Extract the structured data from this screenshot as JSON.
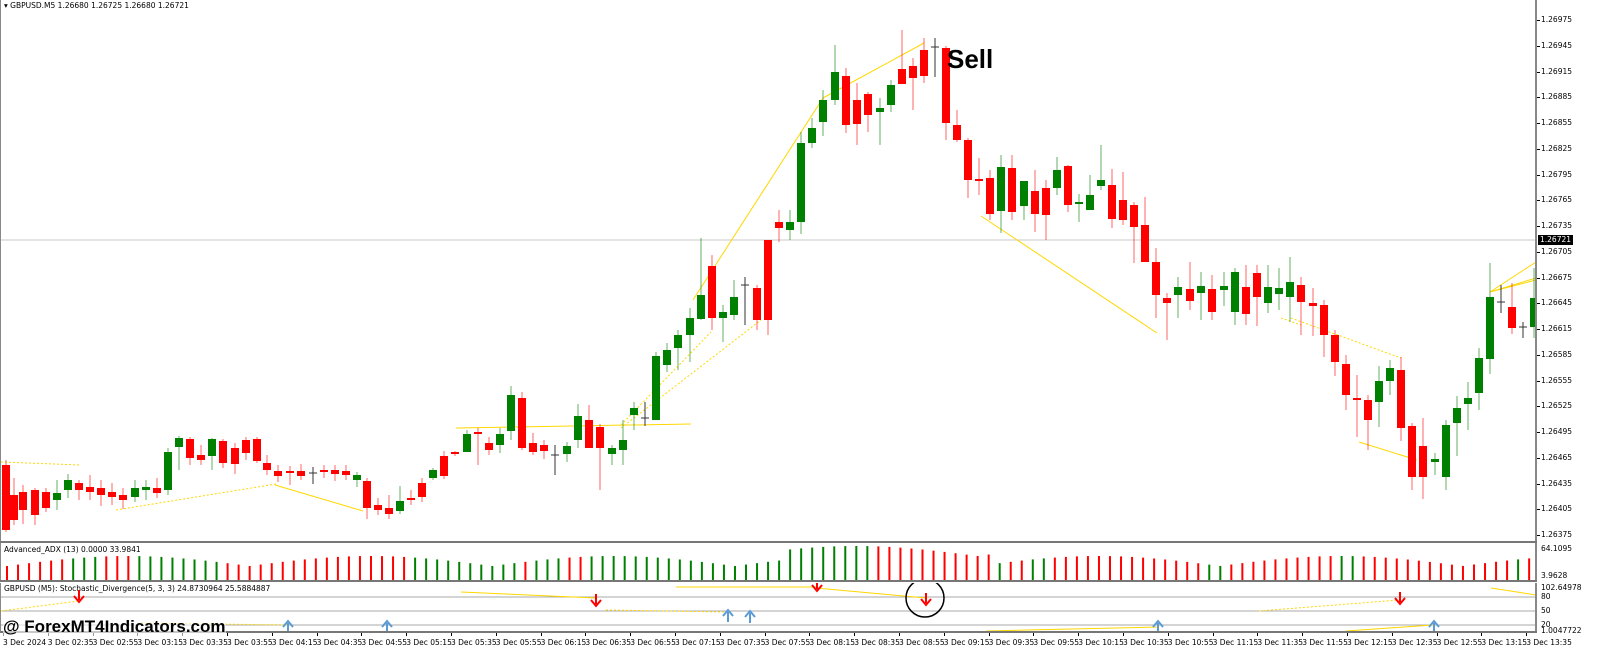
{
  "main_chart": {
    "title": "GBPUSD.M5  1.26680 1.26725 1.26680 1.26721",
    "symbol": "GBPUSD.M5",
    "ohlc": {
      "open": "1.26680",
      "high": "1.26725",
      "low": "1.26680",
      "close": "1.26721"
    },
    "current_price": "1.26721",
    "annotation": "Sell",
    "bull_color": "#008000",
    "bear_color": "#ff0000",
    "line_color": "#ffd700",
    "price_axis": [
      "1.26975",
      "1.26945",
      "1.26915",
      "1.26885",
      "1.26855",
      "1.26825",
      "1.26795",
      "1.26765",
      "1.26735",
      "1.26705",
      "1.26675",
      "1.26645",
      "1.26615",
      "1.26585",
      "1.26555",
      "1.26525",
      "1.26495",
      "1.26465",
      "1.26435",
      "1.26405",
      "1.26375"
    ]
  },
  "adx_panel": {
    "title": "Advanced_ADX (13) 0.0000 33.9841",
    "axis_top": "64.1095",
    "axis_bottom": "3.9628"
  },
  "stoch_panel": {
    "title": "GBPUSD (M5):  Stochastic_Divergence(5, 3, 3) 24.8730964 25.5884887",
    "axis": [
      "102.64978",
      "80",
      "50",
      "20",
      "1.0047722"
    ],
    "sell_arrow_color": "#ff0000",
    "buy_arrow_color": "#5b9bd5"
  },
  "time_axis": [
    "3 Dec 2024",
    "3 Dec 02:35",
    "3 Dec 02:55",
    "3 Dec 03:15",
    "3 Dec 03:35",
    "3 Dec 03:55",
    "3 Dec 04:15",
    "3 Dec 04:35",
    "3 Dec 04:55",
    "3 Dec 05:15",
    "3 Dec 05:35",
    "3 Dec 05:55",
    "3 Dec 06:15",
    "3 Dec 06:35",
    "3 Dec 06:55",
    "3 Dec 07:15",
    "3 Dec 07:35",
    "3 Dec 07:55",
    "3 Dec 08:15",
    "3 Dec 08:35",
    "3 Dec 08:55",
    "3 Dec 09:15",
    "3 Dec 09:35",
    "3 Dec 09:55",
    "3 Dec 10:15",
    "3 Dec 10:35",
    "3 Dec 10:55",
    "3 Dec 11:15",
    "3 Dec 11:35",
    "3 Dec 11:55",
    "3 Dec 12:15",
    "3 Dec 12:35",
    "3 Dec 12:55",
    "3 Dec 13:15",
    "3 Dec 13:35"
  ],
  "watermark": "@ ForexMT4Indicators.com"
}
